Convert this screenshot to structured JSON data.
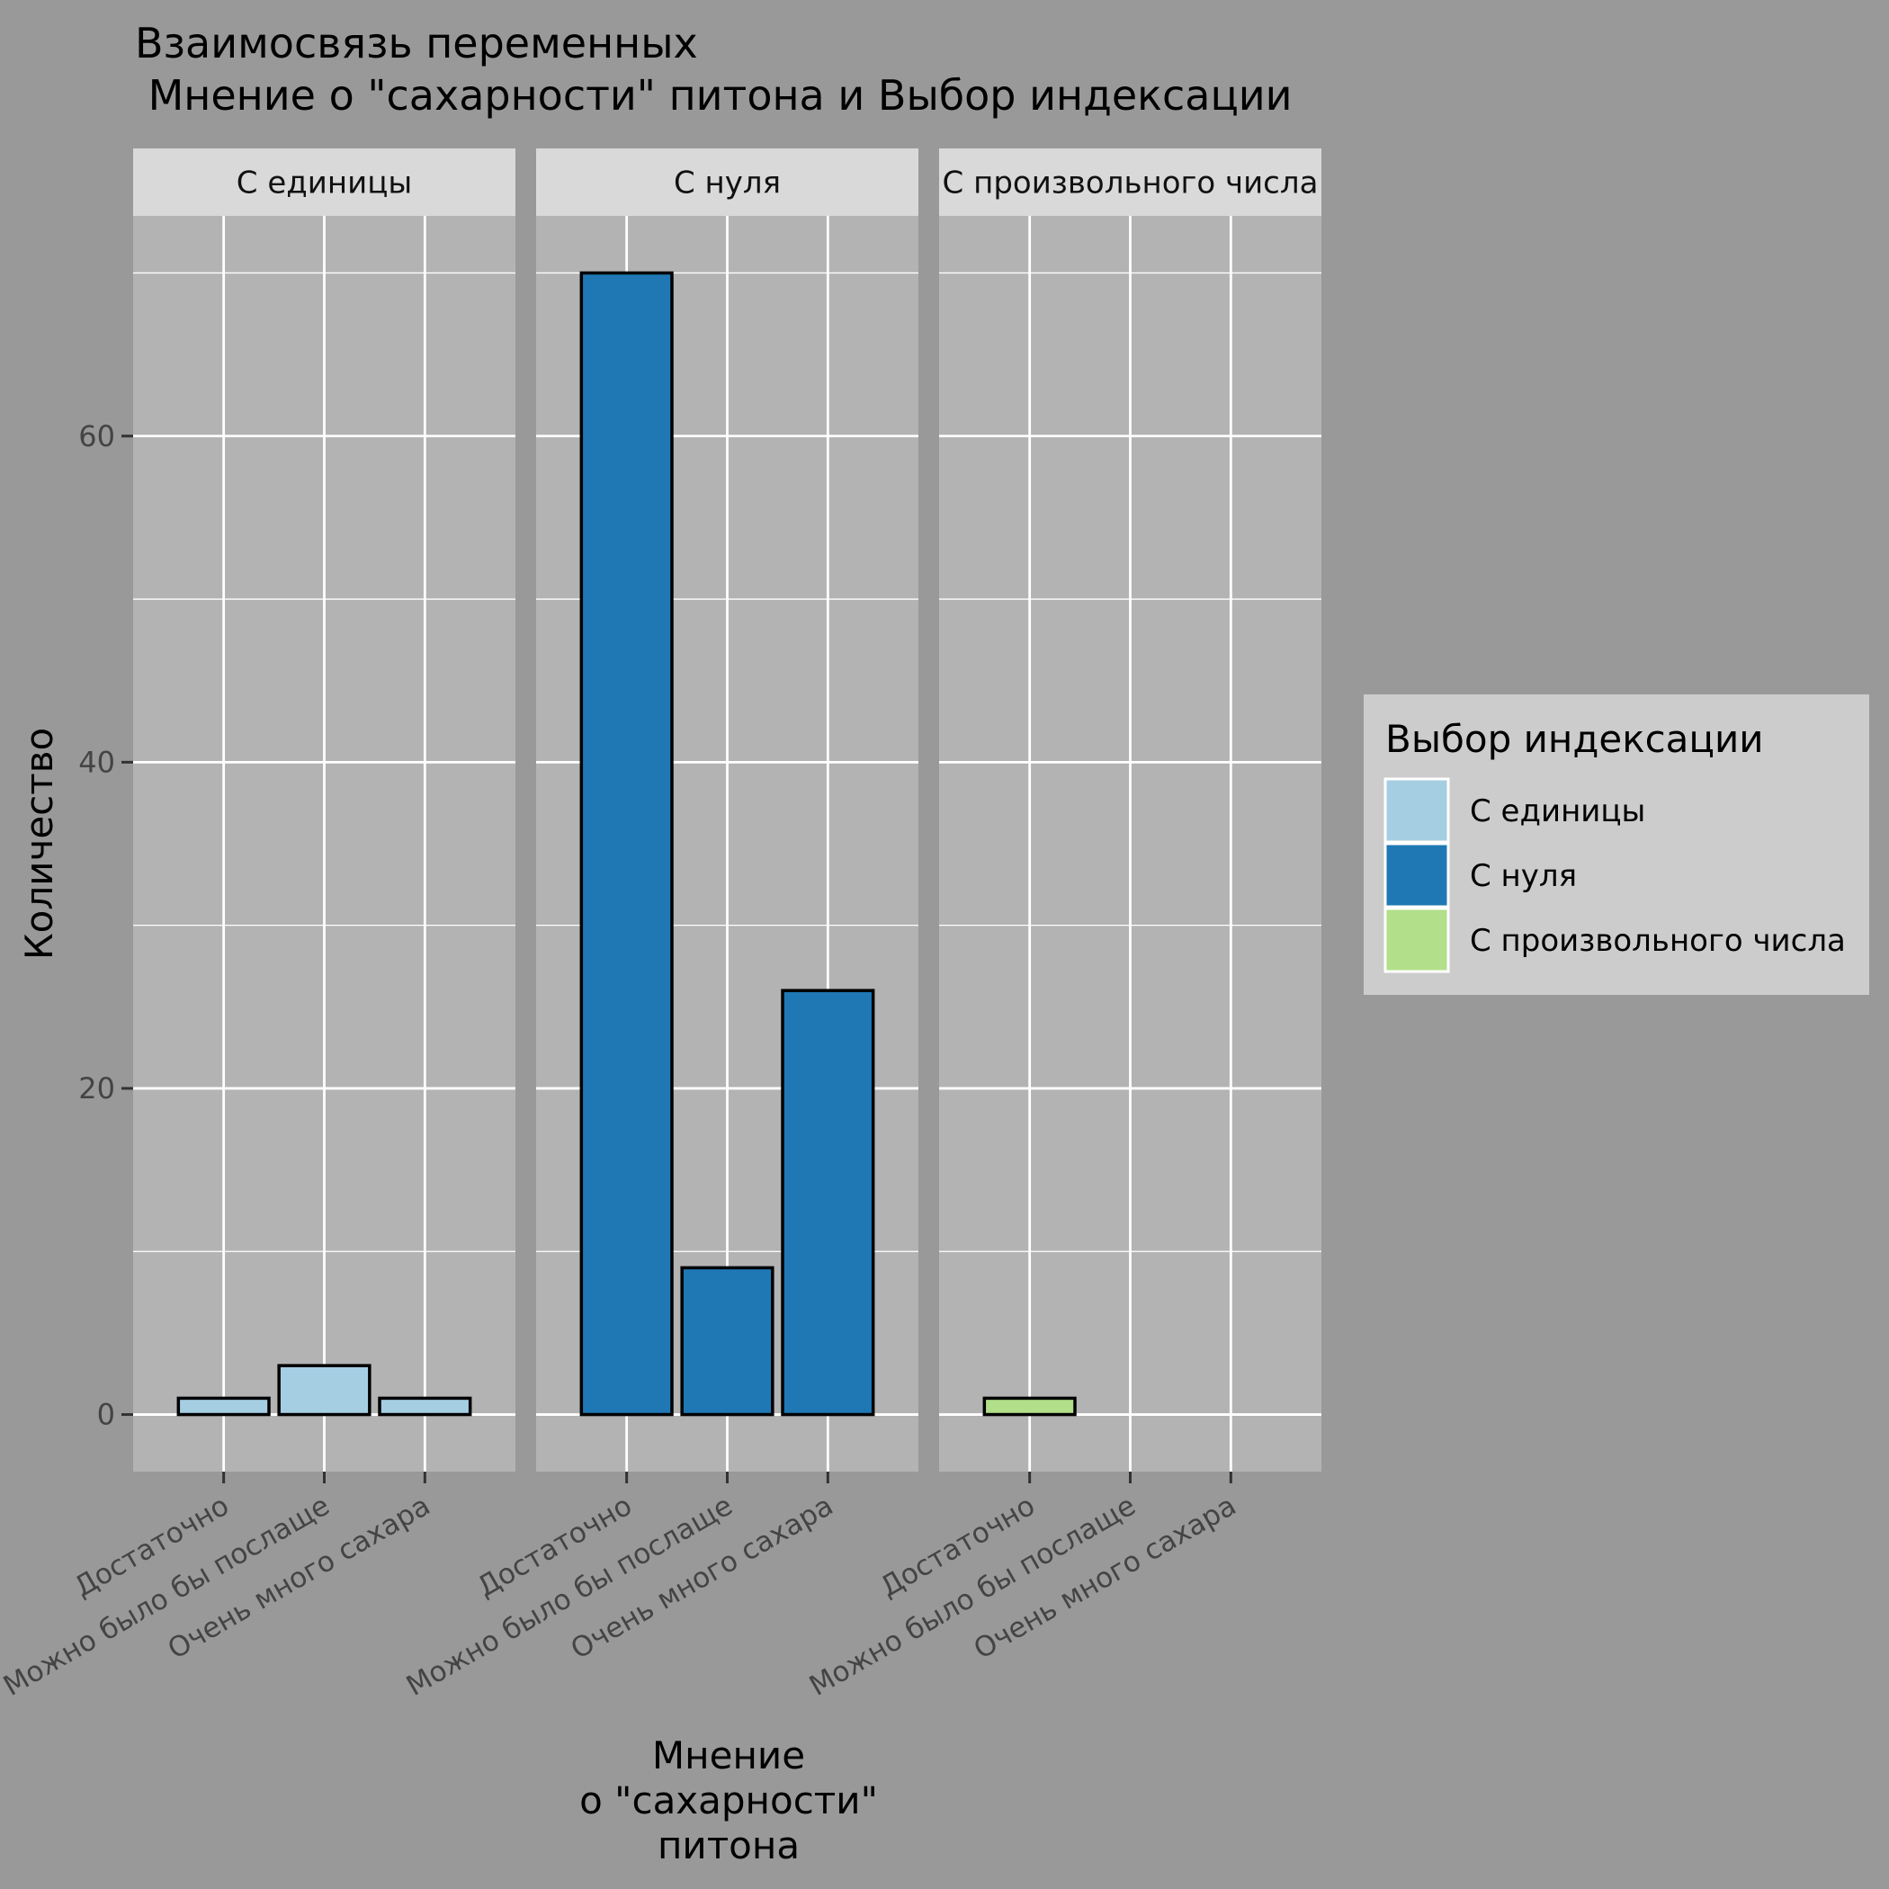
{
  "chart_data": {
    "type": "bar",
    "title_lines": [
      "Взаимосвязь переменных",
      " Мнение о \"сахарности\" питона и Выбор индексации"
    ],
    "xlabel_lines": [
      "Мнение",
      "о \"сахарности\"",
      "питона"
    ],
    "ylabel": "Количество",
    "ylim": [
      -3.5,
      73.5
    ],
    "yticks": [
      0,
      20,
      40,
      60
    ],
    "categories": [
      "Достаточно",
      "Можно было бы послаще",
      "Очень много сахара"
    ],
    "facets": [
      {
        "label": "С единицы",
        "values": [
          1,
          3,
          1
        ]
      },
      {
        "label": "С нуля",
        "values": [
          70,
          9,
          26
        ]
      },
      {
        "label": "С произвольного числа",
        "values": [
          1,
          0,
          0
        ]
      }
    ],
    "legend": {
      "title": "Выбор индексации",
      "position": "right",
      "items": [
        {
          "label": "С единицы",
          "color": "#A6CEE3"
        },
        {
          "label": "С нуля",
          "color": "#1F78B4"
        },
        {
          "label": "С произвольного числа",
          "color": "#B2DF8A"
        }
      ]
    },
    "grid": true,
    "colors": {
      "background": "#999999",
      "panel": "#B3B3B3",
      "strip": "#D9D9D9",
      "legend_bg": "#CCCCCC",
      "grid": "#FFFFFF",
      "bar_outline": "#000000"
    }
  }
}
